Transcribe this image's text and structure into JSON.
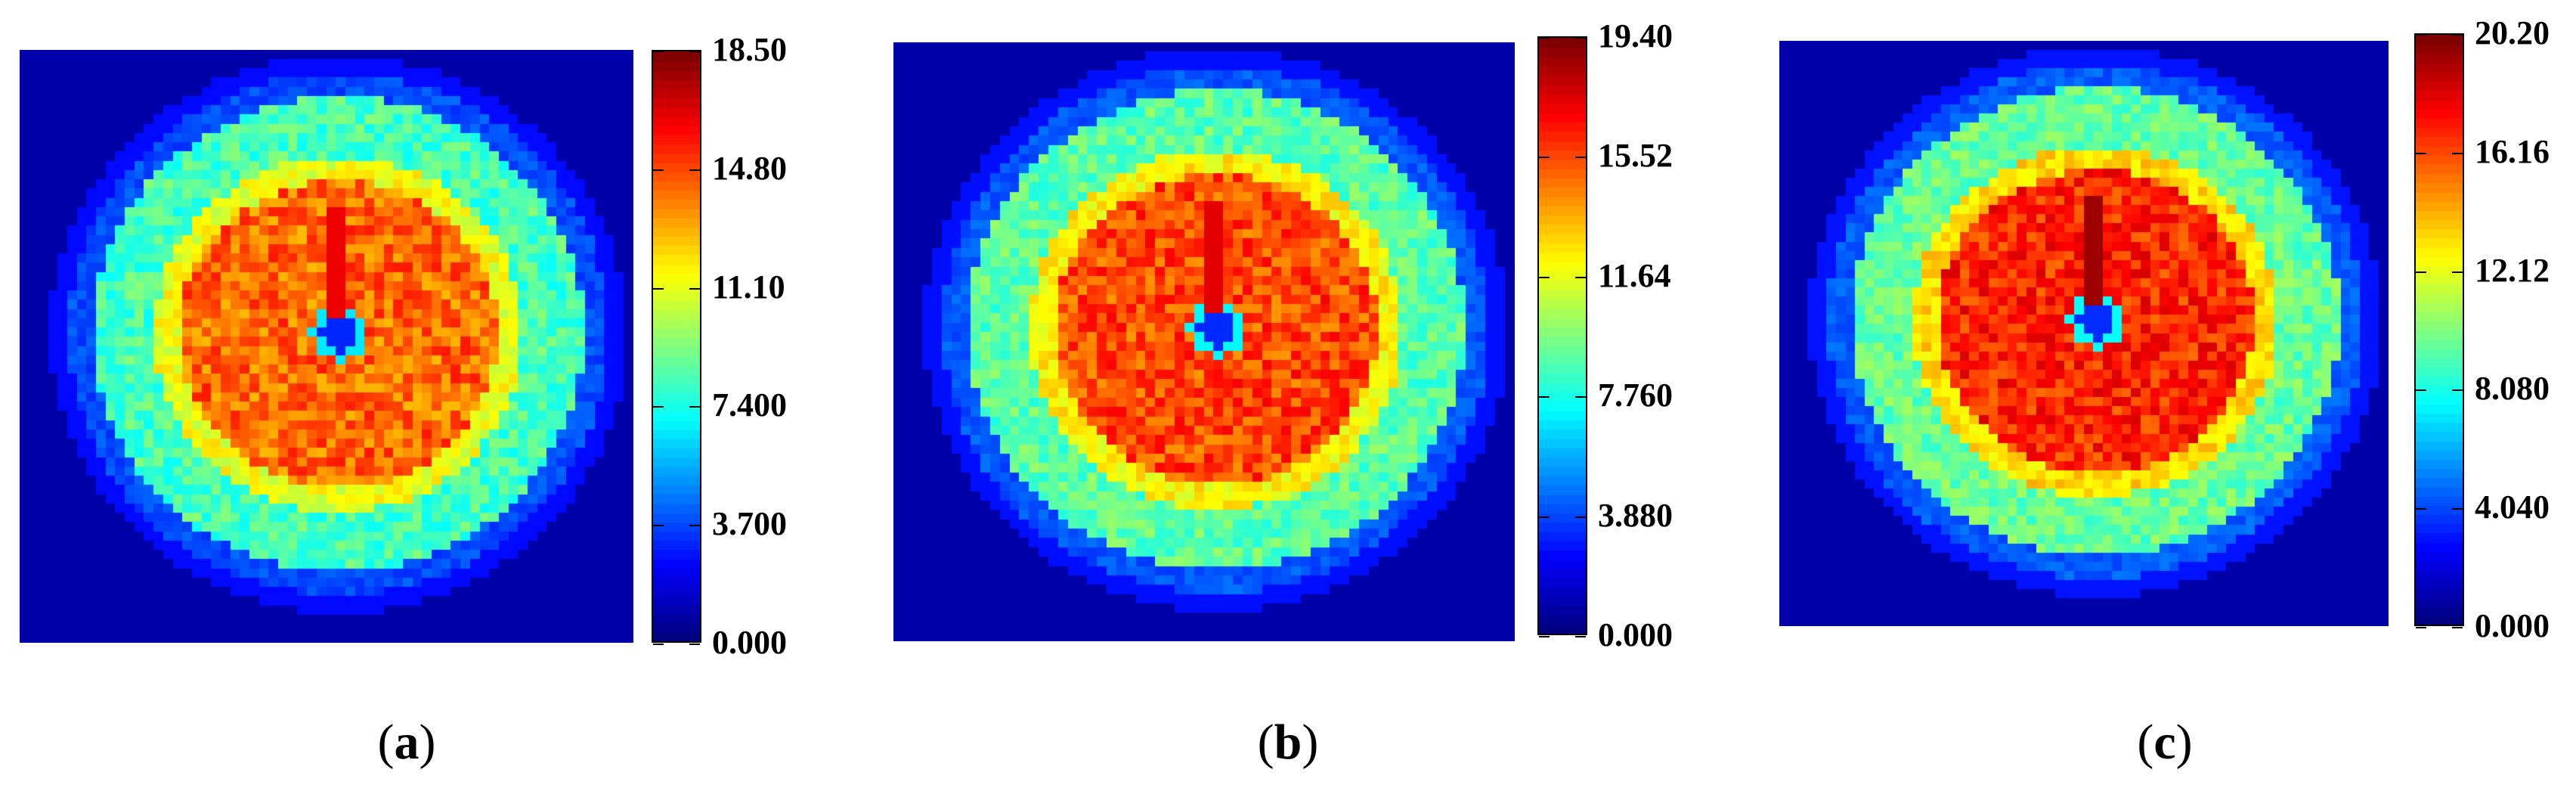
{
  "chart_data": [
    {
      "type": "heatmap",
      "caption_open": "(",
      "caption_letter": "a",
      "caption_close": ")",
      "colorbar": {
        "min": 0,
        "max": 18.5,
        "tick_labels": [
          "0.000",
          "3.700",
          "7.400",
          "11.10",
          "14.80",
          "18.50"
        ]
      },
      "pattern": {
        "inner_level": 14.3,
        "outer_ring_level": 8.2,
        "hole_level": 3.0,
        "peak_level": 16.5
      }
    },
    {
      "type": "heatmap",
      "caption_open": "(",
      "caption_letter": "b",
      "caption_close": ")",
      "colorbar": {
        "min": 0,
        "max": 19.4,
        "tick_labels": [
          "0.000",
          "3.880",
          "7.760",
          "11.64",
          "15.52",
          "19.40"
        ]
      },
      "pattern": {
        "inner_level": 15.6,
        "outer_ring_level": 9.0,
        "hole_level": 3.2,
        "peak_level": 17.5
      }
    },
    {
      "type": "heatmap",
      "caption_open": "(",
      "caption_letter": "c",
      "caption_close": ")",
      "colorbar": {
        "min": 0,
        "max": 20.2,
        "tick_labels": [
          "0.000",
          "4.040",
          "8.080",
          "12.12",
          "16.16",
          "20.20"
        ]
      },
      "pattern": {
        "inner_level": 17.0,
        "outer_ring_level": 9.6,
        "hole_level": 3.4,
        "peak_level": 19.6
      }
    }
  ]
}
